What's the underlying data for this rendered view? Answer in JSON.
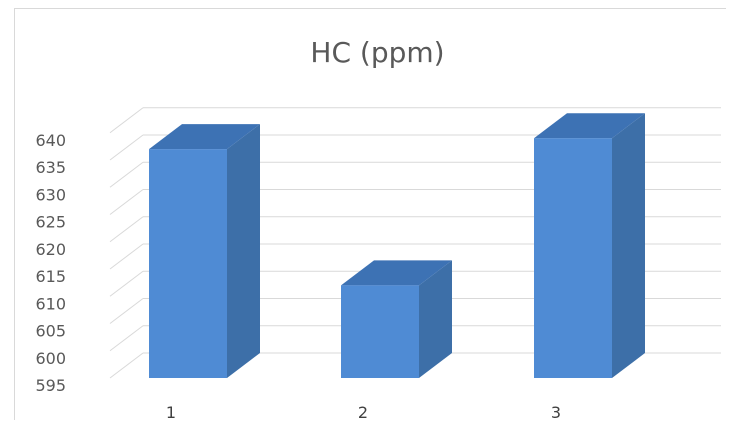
{
  "chart_data": {
    "type": "bar",
    "title": "HC (ppm)",
    "xlabel": "",
    "ylabel": "",
    "categories": [
      "1",
      "2",
      "3"
    ],
    "values": [
      637,
      612,
      639
    ],
    "ylim": [
      595,
      640
    ],
    "yticks": [
      "640",
      "635",
      "630",
      "625",
      "620",
      "615",
      "610",
      "605",
      "600",
      "595"
    ],
    "three_d": true,
    "grid": true,
    "legend": "none",
    "colors": {
      "bar_front": "#4f8bd4",
      "bar_side": "#3d6fa8",
      "bar_top": "#3d72b4",
      "gridline": "#d9d9d9"
    }
  }
}
